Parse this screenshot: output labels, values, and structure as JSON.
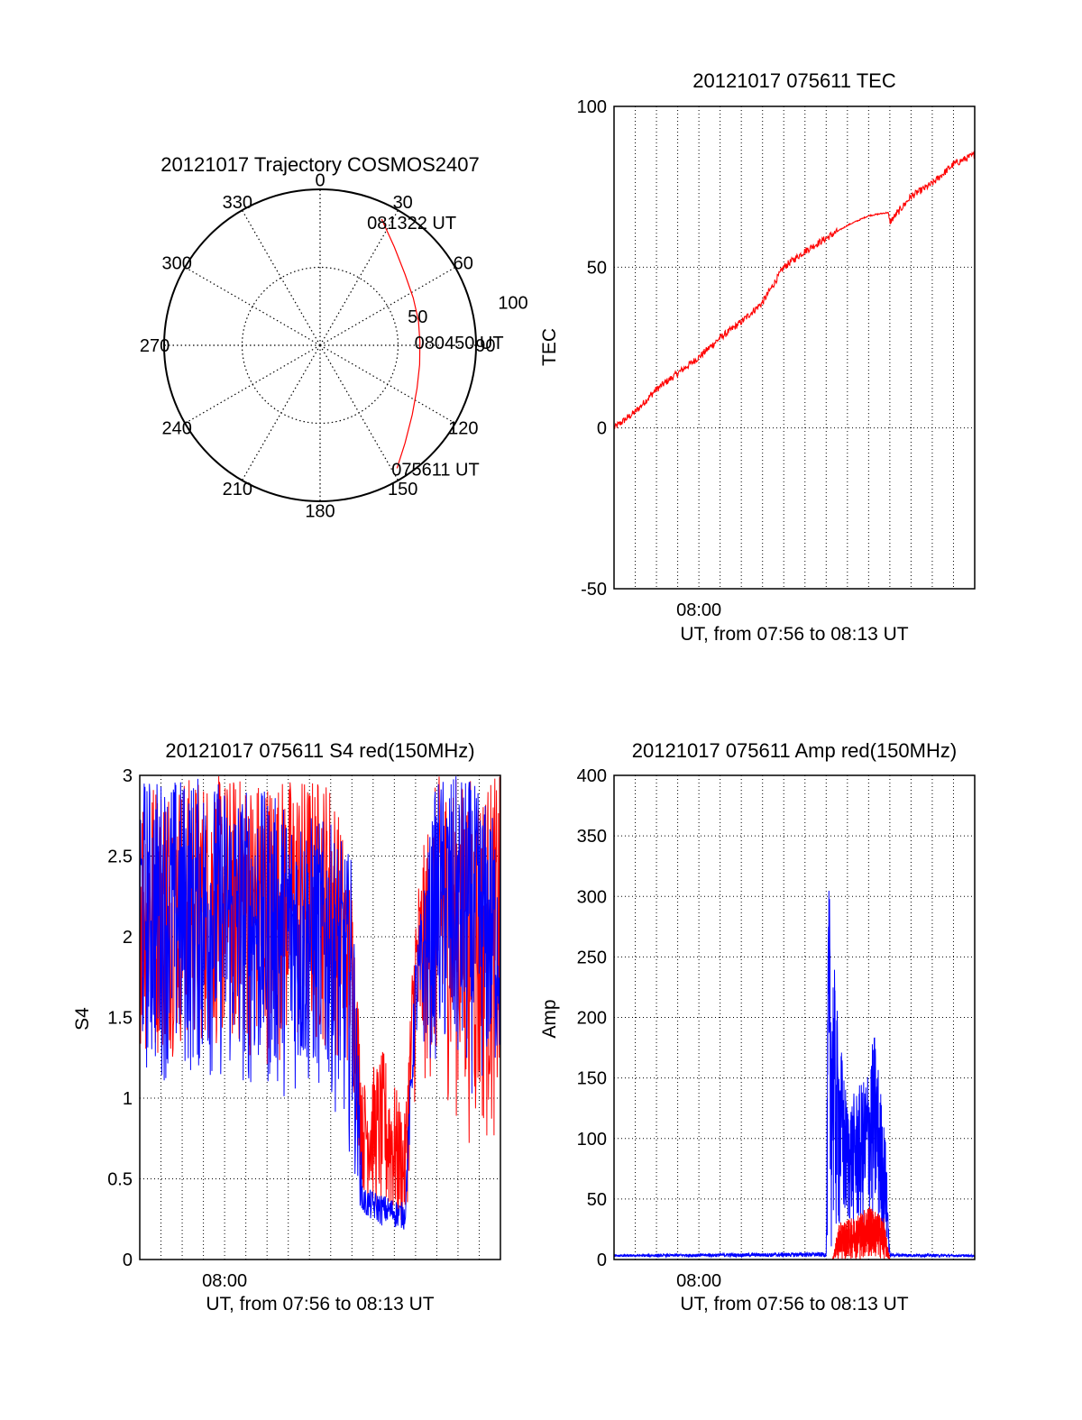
{
  "colors": {
    "red": "#ff0000",
    "blue": "#0000ff",
    "axis": "#000000",
    "grid": "#000000"
  },
  "chart_data": [
    {
      "id": "polar",
      "type": "scatter",
      "subtype": "polar-trajectory",
      "title": "20121017 Trajectory COSMOS2407",
      "angle_labels": [
        "0",
        "30",
        "60",
        "90",
        "120",
        "150",
        "180",
        "210",
        "240",
        "270",
        "300",
        "330"
      ],
      "radius_labels": [
        "50",
        "100"
      ],
      "rmax": 100,
      "series": [
        {
          "color": "red",
          "points": [
            {
              "az": 26,
              "r": 90
            },
            {
              "az": 37,
              "r": 79
            },
            {
              "az": 50,
              "r": 71
            },
            {
              "az": 63,
              "r": 67
            },
            {
              "az": 76,
              "r": 65
            },
            {
              "az": 88,
              "r": 64
            },
            {
              "az": 101,
              "r": 65
            },
            {
              "az": 114,
              "r": 68
            },
            {
              "az": 127,
              "r": 74
            },
            {
              "az": 139,
              "r": 83
            },
            {
              "az": 148,
              "r": 93
            }
          ]
        }
      ],
      "annotations": [
        {
          "text": "081322 UT",
          "az": 23,
          "r": 86
        },
        {
          "text": "080450 UT",
          "az": 88,
          "r": 64
        },
        {
          "text": "075611 UT",
          "az": 148,
          "r": 93
        }
      ]
    },
    {
      "id": "tec",
      "type": "line",
      "title": "20121017 075611 TEC",
      "ylabel": "TEC",
      "xlabel": "UT, from 07:56 to 08:13 UT",
      "xlim": [
        0,
        17
      ],
      "ylim": [
        -50,
        100
      ],
      "yticks": [
        "-50",
        "0",
        "50",
        "100"
      ],
      "xticks": [
        {
          "x": 4,
          "label": "08:00"
        }
      ],
      "grid": true,
      "series": [
        {
          "color": "red",
          "x": [
            0,
            1,
            2,
            3,
            4,
            5,
            6,
            7,
            8,
            9,
            10,
            11,
            12,
            12.9,
            13,
            14,
            15,
            16,
            17
          ],
          "y": [
            0,
            5,
            12,
            17,
            22,
            28,
            33,
            39,
            50,
            55,
            59,
            63,
            66,
            67,
            64,
            72,
            76,
            82,
            85
          ]
        }
      ]
    },
    {
      "id": "s4",
      "type": "line",
      "title": "20121017 075611 S4 red(150MHz)",
      "ylabel": "S4",
      "xlabel": "UT, from 07:56 to 08:13 UT",
      "xlim": [
        0,
        17
      ],
      "ylim": [
        0,
        3
      ],
      "yticks": [
        "0",
        "0.5",
        "1",
        "1.5",
        "2",
        "2.5",
        "3"
      ],
      "xticks": [
        {
          "x": 4,
          "label": "08:00"
        }
      ],
      "grid": true,
      "series": [
        {
          "color": "red",
          "envelope": [
            {
              "x": 0,
              "lo": 1.2,
              "hi": 3.0
            },
            {
              "x": 3,
              "lo": 1.3,
              "hi": 3.0
            },
            {
              "x": 6,
              "lo": 1.2,
              "hi": 3.0
            },
            {
              "x": 9,
              "lo": 1.3,
              "hi": 3.0
            },
            {
              "x": 10,
              "lo": 1.1,
              "hi": 2.4
            },
            {
              "x": 10.5,
              "lo": 0.4,
              "hi": 1.1
            },
            {
              "x": 11.5,
              "lo": 0.2,
              "hi": 1.3
            },
            {
              "x": 12.5,
              "lo": 0.15,
              "hi": 0.9
            },
            {
              "x": 13,
              "lo": 1.0,
              "hi": 2.3
            },
            {
              "x": 14,
              "lo": 1.1,
              "hi": 3.0
            },
            {
              "x": 15.5,
              "lo": 0.7,
              "hi": 3.0
            },
            {
              "x": 17,
              "lo": 0.7,
              "hi": 3.0
            }
          ]
        },
        {
          "color": "blue",
          "envelope": [
            {
              "x": 0,
              "lo": 1.1,
              "hi": 3.0
            },
            {
              "x": 3,
              "lo": 1.1,
              "hi": 3.0
            },
            {
              "x": 6,
              "lo": 1.0,
              "hi": 2.9
            },
            {
              "x": 9,
              "lo": 1.0,
              "hi": 2.7
            },
            {
              "x": 10,
              "lo": 0.6,
              "hi": 2.5
            },
            {
              "x": 10.5,
              "lo": 0.25,
              "hi": 0.45
            },
            {
              "x": 11.5,
              "lo": 0.2,
              "hi": 0.4
            },
            {
              "x": 12.5,
              "lo": 0.18,
              "hi": 0.35
            },
            {
              "x": 13,
              "lo": 1.3,
              "hi": 1.9
            },
            {
              "x": 14,
              "lo": 1.2,
              "hi": 3.0
            },
            {
              "x": 15.5,
              "lo": 1.0,
              "hi": 3.0
            },
            {
              "x": 17,
              "lo": 1.1,
              "hi": 2.7
            }
          ]
        }
      ]
    },
    {
      "id": "amp",
      "type": "line",
      "title": "20121017 075611 Amp red(150MHz)",
      "ylabel": "Amp",
      "xlabel": "UT, from 07:56 to 08:13 UT",
      "xlim": [
        0,
        17
      ],
      "ylim": [
        0,
        400
      ],
      "yticks": [
        "0",
        "50",
        "100",
        "150",
        "200",
        "250",
        "300",
        "350",
        "400"
      ],
      "xticks": [
        {
          "x": 4,
          "label": "08:00"
        }
      ],
      "grid": true,
      "series": [
        {
          "color": "blue",
          "envelope": [
            {
              "x": 0,
              "lo": 2,
              "hi": 4
            },
            {
              "x": 10,
              "lo": 2,
              "hi": 6
            },
            {
              "x": 10.1,
              "lo": 5,
              "hi": 320
            },
            {
              "x": 10.5,
              "lo": 10,
              "hi": 210
            },
            {
              "x": 11,
              "lo": 25,
              "hi": 130
            },
            {
              "x": 11.8,
              "lo": 20,
              "hi": 150
            },
            {
              "x": 12.3,
              "lo": 20,
              "hi": 190
            },
            {
              "x": 12.8,
              "lo": 10,
              "hi": 100
            },
            {
              "x": 13,
              "lo": 2,
              "hi": 5
            },
            {
              "x": 17,
              "lo": 2,
              "hi": 4
            }
          ]
        },
        {
          "color": "red",
          "envelope": [
            {
              "x": 10.3,
              "lo": 0,
              "hi": 0
            },
            {
              "x": 10.6,
              "lo": 0,
              "hi": 30
            },
            {
              "x": 11.3,
              "lo": 0,
              "hi": 35
            },
            {
              "x": 12.0,
              "lo": 0,
              "hi": 45
            },
            {
              "x": 12.7,
              "lo": 0,
              "hi": 35
            },
            {
              "x": 13,
              "lo": 0,
              "hi": 0
            }
          ]
        }
      ]
    }
  ]
}
